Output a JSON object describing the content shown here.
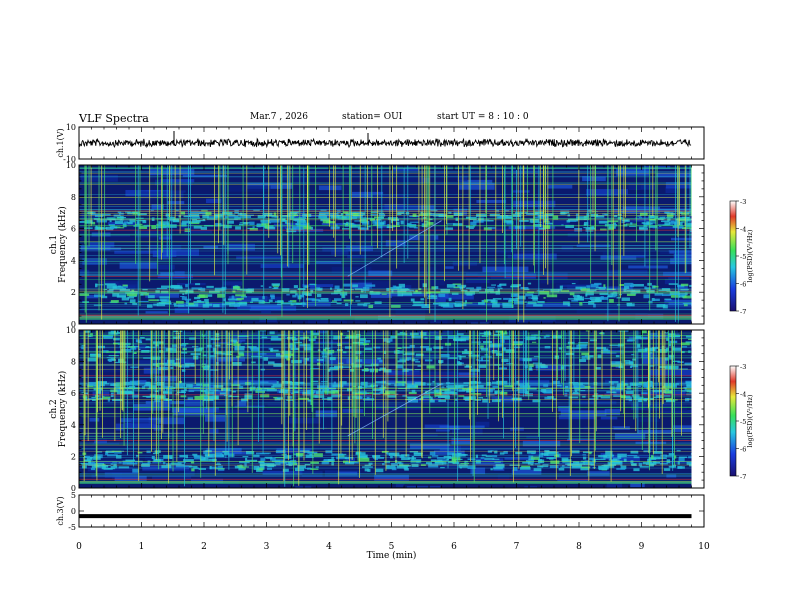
{
  "header": {
    "title": "VLF Spectra",
    "date": "Mar.7 , 2026",
    "station": "station= OUI",
    "start_ut": "start UT =  8 : 10 : 0"
  },
  "colors": {
    "spec_low": "#0b1a6e",
    "spec_cyan": "#27c3d8",
    "spec_green": "#4ee36b",
    "spec_yellow": "#d8e84a",
    "spec_red": "#c0303a"
  },
  "chart_data": [
    {
      "type": "line",
      "panel": "ch1-waveform",
      "ylabel": "ch.1(V)",
      "ylim": [
        -10,
        10
      ],
      "y_ticks": [
        "10",
        "-10"
      ],
      "x": [
        0,
        1,
        2,
        3,
        4,
        5,
        6,
        7,
        8,
        9,
        9.8
      ],
      "series": [
        {
          "values": [
            0,
            0,
            0,
            0,
            0,
            0,
            0,
            0,
            0,
            0,
            0
          ]
        }
      ]
    },
    {
      "type": "heatmap",
      "panel": "ch1-spectrogram",
      "ylabel_line1": "ch.1",
      "ylabel_line2": "Frequency (kHz)",
      "xlim": [
        0,
        10
      ],
      "ylim": [
        0,
        10
      ],
      "y_ticks": [
        "0",
        "2",
        "4",
        "6",
        "8",
        "10"
      ],
      "colorbar": {
        "label": "log(PSD)(V²/Hz)",
        "range": [
          -7,
          -3
        ],
        "ticks": [
          "-3",
          "-4",
          "-5",
          "-6",
          "-7"
        ]
      },
      "bright_bands_khz": [
        [
          1.2,
          2.6
        ],
        [
          6.0,
          7.2
        ]
      ]
    },
    {
      "type": "heatmap",
      "panel": "ch2-spectrogram",
      "ylabel_line1": "ch.2",
      "ylabel_line2": "Frequency (kHz)",
      "xlim": [
        0,
        10
      ],
      "ylim": [
        0,
        10
      ],
      "y_ticks": [
        "0",
        "2",
        "4",
        "6",
        "8",
        "10"
      ],
      "colorbar": {
        "label": "log(PSD)(V²/Hz)",
        "range": [
          -7,
          -3
        ],
        "ticks": [
          "-3",
          "-4",
          "-5",
          "-6",
          "-7"
        ]
      },
      "bright_bands_khz": [
        [
          1.2,
          2.4
        ],
        [
          5.6,
          6.8
        ],
        [
          7.5,
          10
        ]
      ]
    },
    {
      "type": "line",
      "panel": "ch3-waveform",
      "ylabel": "ch.3(V)",
      "ylim": [
        -5,
        5
      ],
      "y_ticks": [
        "5",
        "0",
        "-5"
      ],
      "x": [
        0,
        9.8
      ],
      "series": [
        {
          "values": [
            -1.6,
            -1.6
          ]
        }
      ]
    }
  ],
  "x_axis": {
    "label": "Time (min)",
    "ticks": [
      "0",
      "1",
      "2",
      "3",
      "4",
      "5",
      "6",
      "7",
      "8",
      "9",
      "10"
    ]
  }
}
